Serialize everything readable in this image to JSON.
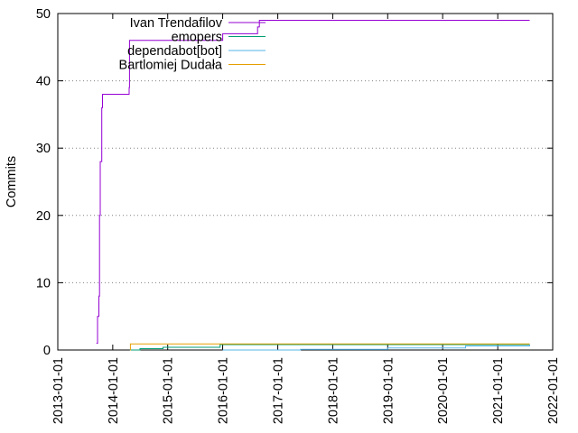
{
  "chart_data": {
    "type": "line",
    "title": "",
    "xlabel": "",
    "ylabel": "Commits",
    "ylim": [
      0,
      50
    ],
    "xlim": [
      "2013-01-01",
      "2022-01-01"
    ],
    "y_ticks": [
      0,
      10,
      20,
      30,
      40,
      50
    ],
    "x_ticks": [
      "2013-01-01",
      "2014-01-01",
      "2015-01-01",
      "2016-01-01",
      "2017-01-01",
      "2018-01-01",
      "2019-01-01",
      "2020-01-01",
      "2021-01-01",
      "2022-01-01"
    ],
    "grid": "horizontal dotted",
    "legend_position": "top-left",
    "series": [
      {
        "name": "Ivan Trendafilov",
        "color": "#9400d3",
        "step": true,
        "points": [
          [
            "2013-09-15",
            1
          ],
          [
            "2013-09-22",
            5
          ],
          [
            "2013-10-01",
            8
          ],
          [
            "2013-10-05",
            20
          ],
          [
            "2013-10-10",
            28
          ],
          [
            "2013-10-20",
            36
          ],
          [
            "2013-10-25",
            38
          ],
          [
            "2014-04-20",
            39
          ],
          [
            "2014-04-22",
            46
          ],
          [
            "2015-12-01",
            46
          ],
          [
            "2016-01-01",
            47
          ],
          [
            "2016-08-20",
            48
          ],
          [
            "2016-09-01",
            49
          ],
          [
            "2021-08-01",
            49
          ]
        ]
      },
      {
        "name": "emopers",
        "color": "#009e73",
        "step": true,
        "points": [
          [
            "2014-04-25",
            0
          ],
          [
            "2014-07-01",
            0.2
          ],
          [
            "2014-12-01",
            0.4
          ],
          [
            "2015-12-15",
            0.8
          ],
          [
            "2021-08-01",
            0.8
          ]
        ]
      },
      {
        "name": "dependabot[bot]",
        "color": "#56b4e9",
        "step": true,
        "points": [
          [
            "2016-01-01",
            0
          ],
          [
            "2017-06-01",
            0.1
          ],
          [
            "2019-01-01",
            0.3
          ],
          [
            "2020-06-01",
            0.6
          ],
          [
            "2021-08-01",
            0.8
          ]
        ]
      },
      {
        "name": "Bartlomiej Dudała",
        "color": "#e69f00",
        "step": true,
        "points": [
          [
            "2014-04-25",
            0
          ],
          [
            "2014-04-28",
            0.9
          ],
          [
            "2021-08-01",
            0.9
          ]
        ]
      }
    ]
  }
}
